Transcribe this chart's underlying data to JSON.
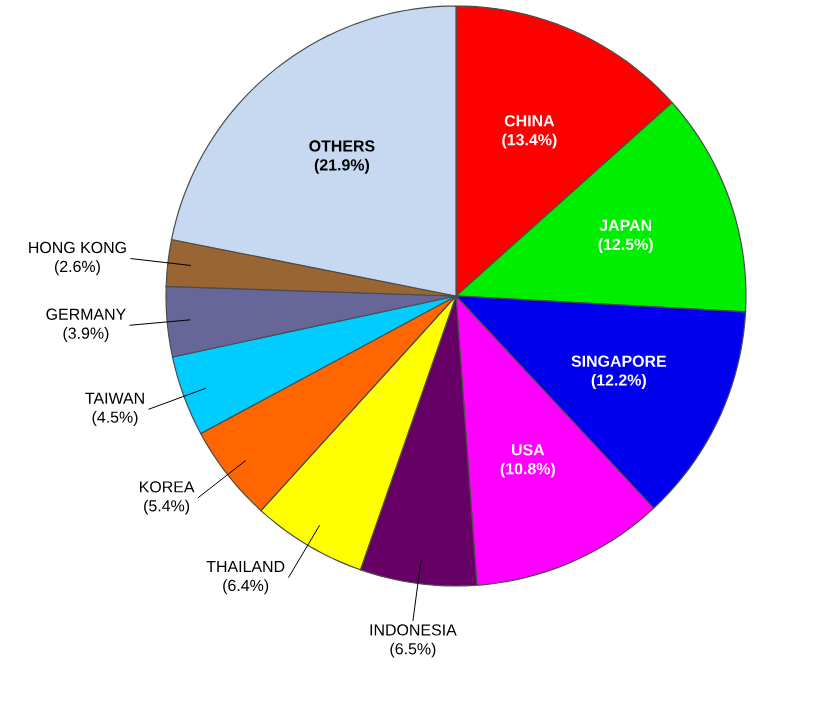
{
  "chart_data": {
    "type": "pie",
    "categories": [
      "CHINA",
      "JAPAN",
      "SINGAPORE",
      "USA",
      "INDONESIA",
      "THAILAND",
      "KOREA",
      "TAIWAN",
      "GERMANY",
      "HONG KONG",
      "OTHERS"
    ],
    "values": [
      13.4,
      12.5,
      12.2,
      10.8,
      6.5,
      6.4,
      5.4,
      4.5,
      3.9,
      2.6,
      21.9
    ],
    "value_labels": [
      "(13.4%)",
      "(12.5%)",
      "(12.2%)",
      "(10.8%)",
      "(6.5%)",
      "(6.4%)",
      "(5.4%)",
      "(4.5%)",
      "(3.9%)",
      "(2.6%)",
      "(21.9%)"
    ],
    "colors": [
      "#ff0000",
      "#00ee00",
      "#0000ee",
      "#ff00ff",
      "#660066",
      "#ffff00",
      "#ff6600",
      "#00ccff",
      "#666699",
      "#996633",
      "#c6d9f1"
    ]
  }
}
